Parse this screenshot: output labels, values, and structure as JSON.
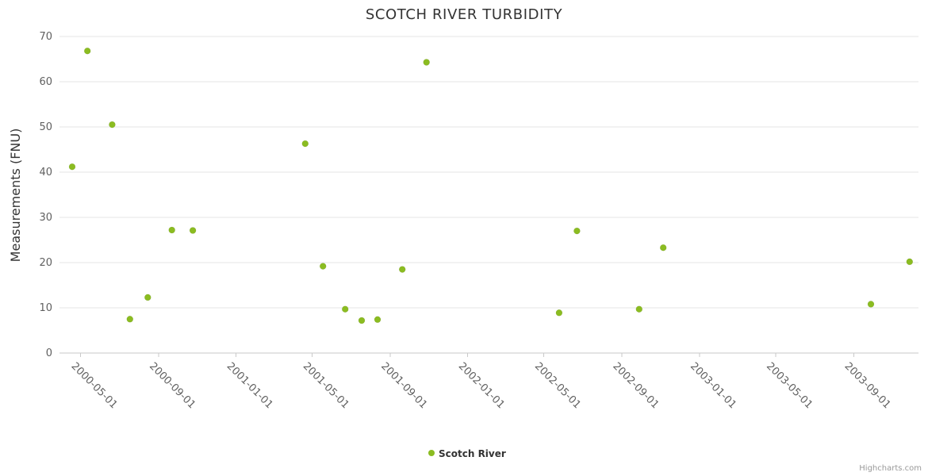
{
  "chart_data": {
    "type": "scatter",
    "title": "SCOTCH RIVER TURBIDITY",
    "xlabel": "",
    "ylabel": "Measurements (FNU)",
    "xlim": [
      "2000-03-29",
      "2003-12-12"
    ],
    "ylim": [
      0,
      70
    ],
    "y_ticks": [
      0,
      10,
      20,
      30,
      40,
      50,
      60,
      70
    ],
    "x_ticks": [
      "2000-05-01",
      "2000-09-01",
      "2001-01-01",
      "2001-05-01",
      "2001-09-01",
      "2002-01-01",
      "2002-05-01",
      "2002-09-01",
      "2003-01-01",
      "2003-05-01",
      "2003-09-01"
    ],
    "grid": "horizontal",
    "legend_position": "bottom-center",
    "series": [
      {
        "name": "Scotch River",
        "color": "#8bbc21",
        "marker": "circle",
        "data": [
          [
            "2000-04-18",
            41.2
          ],
          [
            "2000-05-12",
            66.8
          ],
          [
            "2000-06-20",
            50.5
          ],
          [
            "2000-07-18",
            7.5
          ],
          [
            "2000-08-15",
            12.3
          ],
          [
            "2000-09-22",
            27.2
          ],
          [
            "2000-10-25",
            27.1
          ],
          [
            "2001-04-20",
            46.3
          ],
          [
            "2001-05-18",
            19.2
          ],
          [
            "2001-06-22",
            9.7
          ],
          [
            "2001-07-18",
            7.2
          ],
          [
            "2001-08-12",
            7.4
          ],
          [
            "2001-09-20",
            18.5
          ],
          [
            "2001-10-28",
            64.3
          ],
          [
            "2002-05-25",
            8.9
          ],
          [
            "2002-06-22",
            27.0
          ],
          [
            "2002-09-28",
            9.7
          ],
          [
            "2002-11-05",
            23.3
          ],
          [
            "2003-09-28",
            10.8
          ],
          [
            "2003-11-28",
            20.2
          ]
        ]
      }
    ]
  },
  "colors": {
    "point": "#8bbc21",
    "grid": "#e6e6e6",
    "axis_line": "#c9c9c9",
    "title_text": "#333333",
    "tick_text": "#606060"
  },
  "credits": {
    "text": "Highcharts.com"
  }
}
